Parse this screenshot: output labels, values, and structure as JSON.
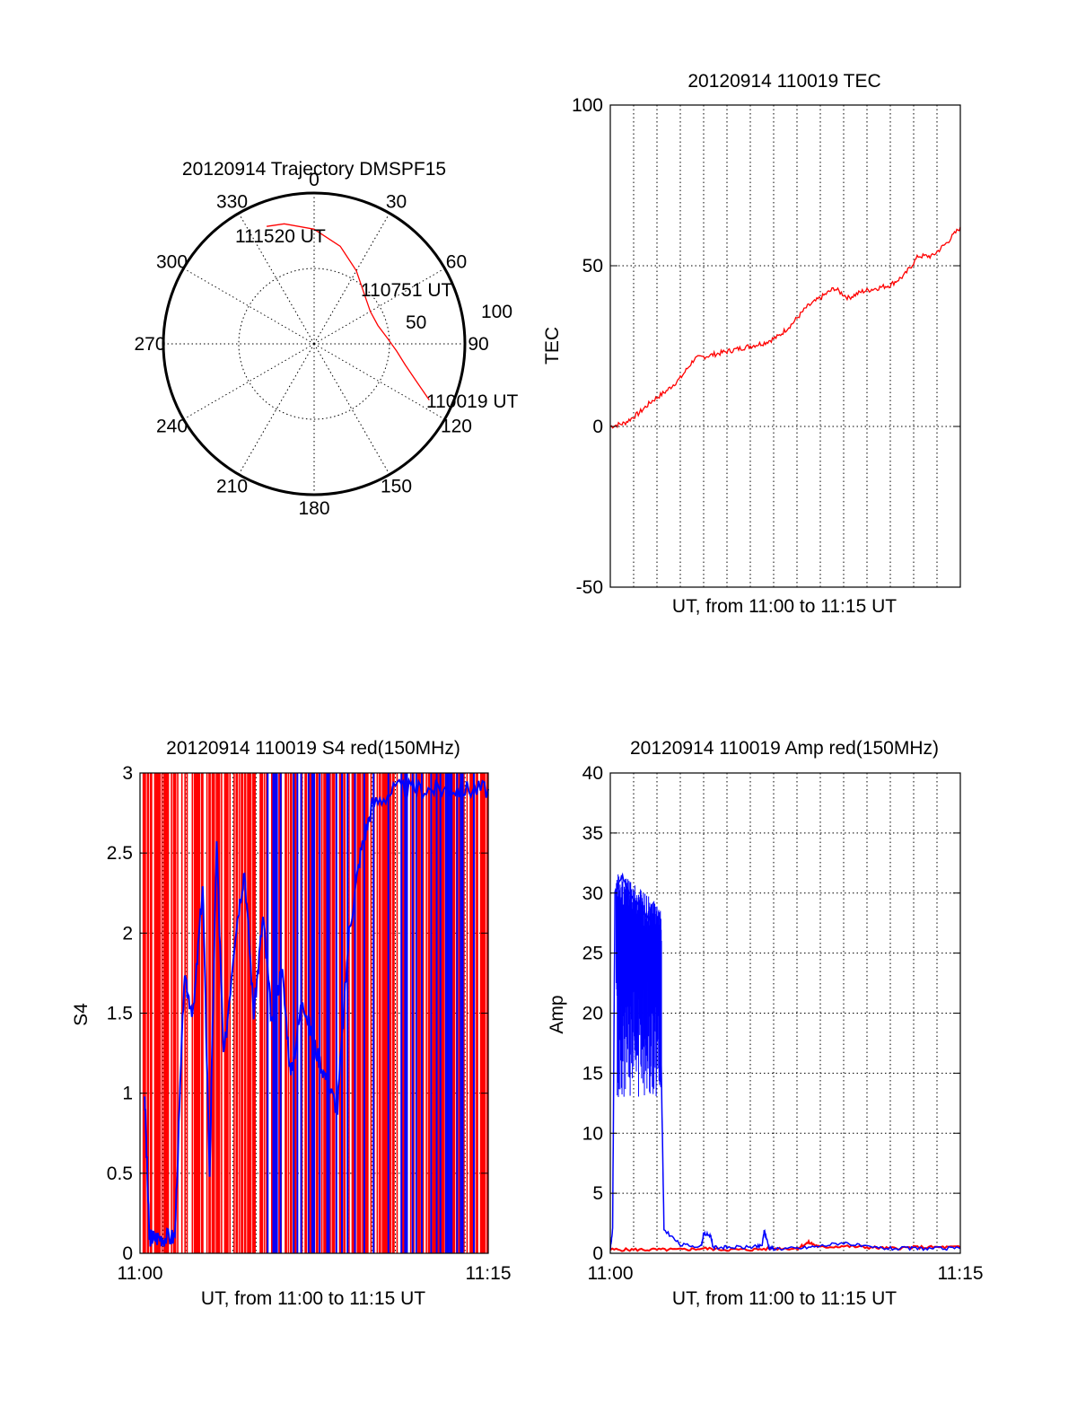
{
  "chart_data": [
    {
      "id": "trajectory",
      "type": "polar",
      "title": "20120914 Trajectory DMSPF15",
      "azimuth_labels": [
        "0",
        "30",
        "60",
        "90",
        "120",
        "150",
        "180",
        "210",
        "240",
        "270",
        "300",
        "330"
      ],
      "radial_labels": [
        "50",
        "100"
      ],
      "radial_max": 100,
      "series": [
        {
          "color": "#ff0000",
          "points": [
            {
              "azimuth": 116,
              "radius": 85
            },
            {
              "azimuth": 110,
              "radius": 72
            },
            {
              "azimuth": 103,
              "radius": 62
            },
            {
              "azimuth": 95,
              "radius": 55
            },
            {
              "azimuth": 86,
              "radius": 49
            },
            {
              "azimuth": 74,
              "radius": 44
            },
            {
              "azimuth": 60,
              "radius": 43
            },
            {
              "azimuth": 45,
              "radius": 47
            },
            {
              "azimuth": 30,
              "radius": 56
            },
            {
              "azimuth": 15,
              "radius": 67
            },
            {
              "azimuth": 0,
              "radius": 76
            },
            {
              "azimuth": -14,
              "radius": 82
            },
            {
              "azimuth": -22,
              "radius": 84
            }
          ]
        }
      ],
      "annotations": [
        "111520 UT",
        "110751 UT",
        "110019 UT"
      ]
    },
    {
      "id": "tec",
      "type": "line",
      "title": "20120914 110019 TEC",
      "xlabel": "UT, from 11:00 to 11:15 UT",
      "ylabel": "TEC",
      "xlim": [
        0,
        15
      ],
      "ylim": [
        -50,
        100
      ],
      "yticks": [
        "-50",
        "0",
        "50",
        "100"
      ],
      "grid": true,
      "series": [
        {
          "color": "#ff0000",
          "x": [
            0.0,
            0.6,
            1.2,
            1.8,
            2.4,
            3.0,
            3.6,
            4.2,
            4.8,
            5.4,
            6.0,
            6.6,
            7.2,
            7.8,
            8.4,
            9.0,
            9.6,
            10.2,
            10.8,
            11.4,
            12.0,
            12.6,
            13.2,
            13.8,
            14.4,
            15.0
          ],
          "y": [
            0,
            1,
            4,
            8,
            11,
            15,
            21,
            22,
            23,
            24,
            25,
            26,
            28,
            32,
            37,
            40,
            43,
            40,
            42,
            43,
            44,
            47,
            53,
            53,
            57,
            62
          ]
        }
      ]
    },
    {
      "id": "s4",
      "type": "line",
      "title": "20120914 110019 S4 red(150MHz)",
      "xlabel": "UT, from 11:00 to 11:15 UT",
      "ylabel": "S4",
      "xlim": [
        0,
        15
      ],
      "ylim": [
        0,
        3
      ],
      "yticks": [
        "0",
        "0.5",
        "1",
        "1.5",
        "2",
        "2.5",
        "3"
      ],
      "xticks": [
        "11:00",
        "11:15"
      ],
      "grid": true,
      "series": [
        {
          "color": "#ff0000",
          "style": "dense vertical spikes 0-3"
        },
        {
          "color": "#0000ff",
          "x": [
            0.2,
            0.4,
            0.6,
            1.0,
            1.5,
            1.9,
            2.3,
            2.7,
            3.0,
            3.3,
            3.6,
            4.1,
            4.5,
            4.9,
            5.3,
            5.7,
            6.1,
            6.5,
            7.0,
            7.5,
            8.0,
            8.5,
            9.0,
            9.5,
            10.0,
            11.0,
            12.0,
            13.0,
            14.0,
            15.0
          ],
          "y": [
            1.0,
            0.1,
            0.1,
            0.1,
            0.1,
            1.7,
            1.5,
            2.3,
            0.5,
            2.6,
            1.2,
            2.0,
            2.4,
            1.5,
            2.1,
            1.4,
            1.8,
            1.1,
            1.6,
            1.3,
            1.1,
            0.9,
            2.0,
            2.5,
            2.8,
            2.9,
            2.9,
            2.9,
            2.9,
            2.9
          ]
        }
      ]
    },
    {
      "id": "amp",
      "type": "line",
      "title": "20120914 110019 Amp red(150MHz)",
      "xlabel": "UT, from 11:00 to 11:15 UT",
      "ylabel": "Amp",
      "xlim": [
        0,
        15
      ],
      "ylim": [
        0,
        40
      ],
      "yticks": [
        "0",
        "5",
        "10",
        "15",
        "20",
        "25",
        "30",
        "35",
        "40"
      ],
      "xticks": [
        "11:00",
        "11:15"
      ],
      "grid": true,
      "series": [
        {
          "color": "#ff0000",
          "x": [
            0.0,
            1.0,
            2.0,
            3.0,
            4.0,
            5.0,
            6.0,
            7.0,
            8.0,
            8.5,
            9.0,
            10.0,
            11.0,
            12.0,
            13.0,
            14.0,
            15.0
          ],
          "y": [
            0.3,
            0.3,
            0.3,
            0.3,
            0.4,
            0.3,
            0.3,
            0.4,
            0.4,
            0.9,
            0.5,
            0.6,
            0.5,
            0.4,
            0.5,
            0.5,
            0.5
          ]
        },
        {
          "color": "#0000ff",
          "x": [
            0.0,
            0.1,
            0.2,
            0.5,
            0.8,
            1.2,
            1.6,
            2.0,
            2.1,
            2.3,
            3.0,
            3.9,
            4.0,
            4.3,
            4.4,
            5.0,
            6.0,
            6.5,
            6.6,
            6.8,
            7.0,
            8.0,
            9.0,
            10.0,
            11.0,
            12.0,
            13.0,
            14.0,
            15.0
          ],
          "y": [
            0.3,
            2.0,
            30.0,
            31.5,
            30.0,
            29.0,
            28.0,
            27.0,
            25.0,
            2.0,
            0.7,
            0.6,
            1.6,
            1.5,
            0.5,
            0.5,
            0.5,
            0.6,
            1.9,
            0.5,
            0.4,
            0.4,
            0.6,
            0.9,
            0.5,
            0.4,
            0.4,
            0.4,
            0.4
          ]
        }
      ]
    }
  ]
}
